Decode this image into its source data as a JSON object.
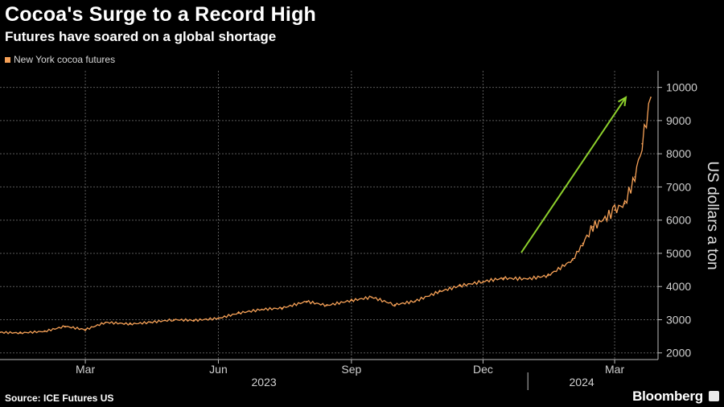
{
  "header": {
    "title": "Cocoa's Surge to a Record High",
    "subtitle": "Futures have soared on a global shortage"
  },
  "footer": {
    "source": "Source: ICE Futures US",
    "brand": "Bloomberg"
  },
  "colors": {
    "series": "#f6a157",
    "arrow": "#8ed12c",
    "grid": "#5a5a5a",
    "background": "#000000"
  },
  "chart_data": {
    "type": "line",
    "title": "Cocoa's Surge to a Record High",
    "subtitle": "Futures have soared on a global shortage",
    "ylabel": "US dollars a ton",
    "xlabel": "",
    "ylim": [
      1800,
      10500
    ],
    "y_ticks": [
      2000,
      3000,
      4000,
      5000,
      6000,
      7000,
      8000,
      9000,
      10000
    ],
    "y_tick_labels": [
      "2000",
      "3000",
      "4000",
      "5000",
      "6000",
      "7000",
      "8000",
      "9000",
      "10000"
    ],
    "xlim": [
      "2023-01-01",
      "2024-03-31"
    ],
    "x_ticks": [
      "2023-03-01",
      "2023-06-01",
      "2023-09-01",
      "2023-12-01",
      "2024-03-01"
    ],
    "x_tick_labels": [
      "Mar",
      "Jun",
      "Sep",
      "Dec",
      "Mar"
    ],
    "year_labels": [
      "2023",
      "2024"
    ],
    "grid": true,
    "legend_position": "top-left",
    "annotation": "upward-arrow",
    "series": [
      {
        "name": "New York cocoa futures",
        "color": "#f6a157",
        "x": [
          "2023-01-01",
          "2023-01-15",
          "2023-02-01",
          "2023-02-15",
          "2023-03-01",
          "2023-03-15",
          "2023-04-01",
          "2023-04-15",
          "2023-05-01",
          "2023-05-15",
          "2023-06-01",
          "2023-06-15",
          "2023-07-01",
          "2023-07-15",
          "2023-08-01",
          "2023-08-15",
          "2023-09-01",
          "2023-09-15",
          "2023-10-01",
          "2023-10-15",
          "2023-11-01",
          "2023-11-15",
          "2023-12-01",
          "2023-12-15",
          "2024-01-01",
          "2024-01-15",
          "2024-02-01",
          "2024-02-08",
          "2024-02-15",
          "2024-02-22",
          "2024-03-01",
          "2024-03-08",
          "2024-03-15",
          "2024-03-20",
          "2024-03-26"
        ],
        "values": [
          2620,
          2600,
          2650,
          2800,
          2700,
          2920,
          2870,
          2920,
          3000,
          2980,
          3040,
          3200,
          3310,
          3350,
          3550,
          3430,
          3580,
          3680,
          3450,
          3560,
          3850,
          4020,
          4150,
          4250,
          4230,
          4330,
          4800,
          5300,
          5800,
          6000,
          6300,
          6500,
          7300,
          8300,
          9700
        ]
      }
    ]
  }
}
